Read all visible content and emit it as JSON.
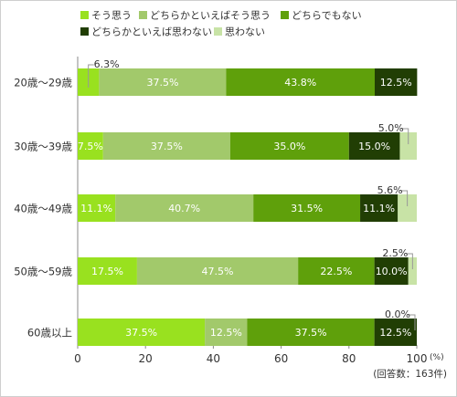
{
  "chart_data": {
    "type": "bar",
    "stacked": "horizontal-100%",
    "categories": [
      "20歳～29歳",
      "30歳～39歳",
      "40歳～49歳",
      "50歳～59歳",
      "60歳以上"
    ],
    "series": [
      {
        "name": "そう思う",
        "color": "#99e11f",
        "values": [
          6.3,
          7.5,
          11.1,
          17.5,
          37.5
        ]
      },
      {
        "name": "どちらかといえばそう思う",
        "color": "#a2c96b",
        "values": [
          37.5,
          37.5,
          40.7,
          47.5,
          12.5
        ]
      },
      {
        "name": "どちらでもない",
        "color": "#5fa00b",
        "values": [
          43.8,
          35.0,
          31.5,
          22.5,
          37.5
        ]
      },
      {
        "name": "どちらかといえば思わない",
        "color": "#213e04",
        "values": [
          12.5,
          15.0,
          11.1,
          10.0,
          12.5
        ]
      },
      {
        "name": "思わない",
        "color": "#c8e3a6",
        "values": [
          0.0,
          5.0,
          5.6,
          2.5,
          0.0
        ]
      }
    ],
    "data_labels": [
      [
        "6.3%",
        "37.5%",
        "43.8%",
        "12.5%",
        ""
      ],
      [
        "7.5%",
        "37.5%",
        "35.0%",
        "15.0%",
        "5.0%"
      ],
      [
        "11.1%",
        "40.7%",
        "31.5%",
        "11.1%",
        "5.6%"
      ],
      [
        "17.5%",
        "47.5%",
        "22.5%",
        "10.0%",
        "2.5%"
      ],
      [
        "37.5%",
        "12.5%",
        "37.5%",
        "12.5%",
        "0.0%"
      ]
    ],
    "x_ticks": [
      "0",
      "20",
      "40",
      "60",
      "80",
      "100"
    ],
    "x_unit": "(%)",
    "xlim": [
      0,
      100
    ],
    "grid": false,
    "legend_position": "top",
    "note": "(回答数：163件)"
  }
}
